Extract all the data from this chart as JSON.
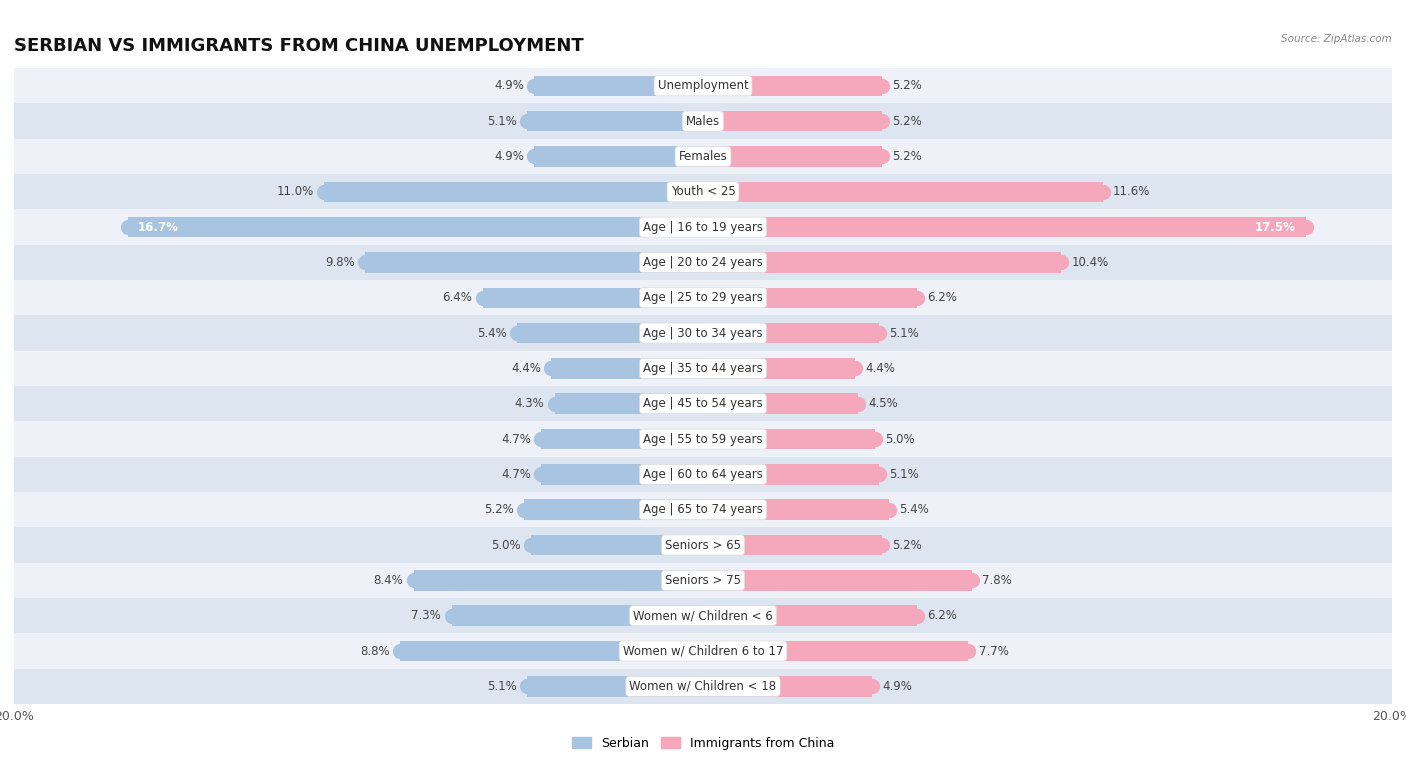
{
  "title": "SERBIAN VS IMMIGRANTS FROM CHINA UNEMPLOYMENT",
  "source": "Source: ZipAtlas.com",
  "categories": [
    "Unemployment",
    "Males",
    "Females",
    "Youth < 25",
    "Age | 16 to 19 years",
    "Age | 20 to 24 years",
    "Age | 25 to 29 years",
    "Age | 30 to 34 years",
    "Age | 35 to 44 years",
    "Age | 45 to 54 years",
    "Age | 55 to 59 years",
    "Age | 60 to 64 years",
    "Age | 65 to 74 years",
    "Seniors > 65",
    "Seniors > 75",
    "Women w/ Children < 6",
    "Women w/ Children 6 to 17",
    "Women w/ Children < 18"
  ],
  "serbian": [
    4.9,
    5.1,
    4.9,
    11.0,
    16.7,
    9.8,
    6.4,
    5.4,
    4.4,
    4.3,
    4.7,
    4.7,
    5.2,
    5.0,
    8.4,
    7.3,
    8.8,
    5.1
  ],
  "immigrants": [
    5.2,
    5.2,
    5.2,
    11.6,
    17.5,
    10.4,
    6.2,
    5.1,
    4.4,
    4.5,
    5.0,
    5.1,
    5.4,
    5.2,
    7.8,
    6.2,
    7.7,
    4.9
  ],
  "max_value": 20.0,
  "serbian_color": "#a8c4e0",
  "immigrant_color": "#f5a8bc",
  "row_colors": [
    "#eef1f7",
    "#dde5f0"
  ],
  "title_fontsize": 13,
  "label_fontsize": 8.5,
  "value_fontsize": 8.5,
  "bar_height": 0.58,
  "large_bar_threshold": 12.0
}
